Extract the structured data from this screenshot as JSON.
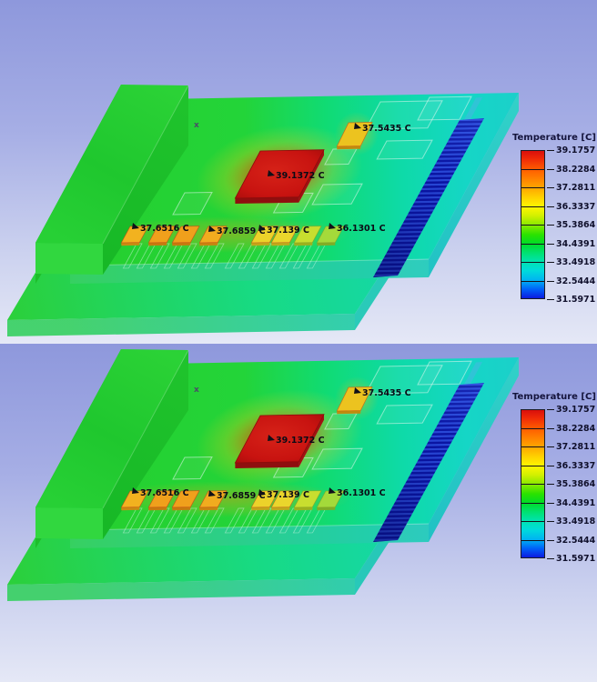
{
  "legend": {
    "title": "Temperature [C]",
    "ticks": [
      "39.1757",
      "38.2284",
      "37.2811",
      "36.3337",
      "35.3864",
      "34.4391",
      "33.4918",
      "32.5444",
      "31.5971"
    ]
  },
  "annotations": [
    {
      "text": "39.1372 C"
    },
    {
      "text": "37.5435 C"
    },
    {
      "text": "37.6516 C"
    },
    {
      "text": "37.6859 C"
    },
    {
      "text": "37.139 C"
    },
    {
      "text": "36.1301 C"
    }
  ],
  "axis_triad": {
    "label": "x"
  },
  "colors": {
    "board_green": "#23d439",
    "board_cyan": "#1ad2c9",
    "hot_chip_red": "#c81410",
    "chip_yellow": "#f0ad20",
    "fin_blue": "#0a15a6",
    "background_top": "#8e98dc",
    "background_bottom": "#e5e8f6"
  },
  "chart_data": {
    "type": "heatmap",
    "title": "Temperature [C]",
    "units": "C",
    "views": 2,
    "legend_position": "right",
    "range": [
      31.5971,
      39.1757
    ],
    "colorbar_ticks": [
      39.1757,
      38.2284,
      37.2811,
      36.3337,
      35.3864,
      34.4391,
      33.4918,
      32.5444,
      31.5971
    ],
    "probes": [
      {
        "value": 39.1372,
        "label": "39.1372 C",
        "location": "large center chip"
      },
      {
        "value": 37.5435,
        "label": "37.5435 C",
        "location": "upper-right chip"
      },
      {
        "value": 37.6516,
        "label": "37.6516 C",
        "location": "front-row chip 1"
      },
      {
        "value": 37.6859,
        "label": "37.6859 C",
        "location": "front-row chip 4"
      },
      {
        "value": 37.139,
        "label": "37.139 C",
        "location": "front-row chip 5"
      },
      {
        "value": 36.1301,
        "label": "36.1301 C",
        "location": "front-row chip 8"
      }
    ]
  }
}
